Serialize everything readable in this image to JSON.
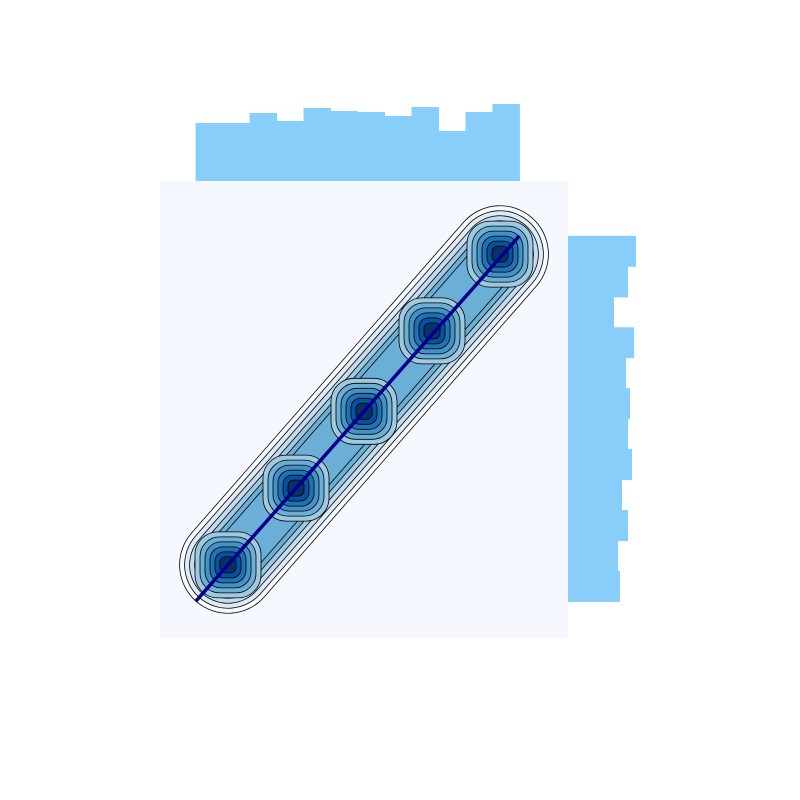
{
  "chart_data": {
    "type": "joint",
    "xlim": [
      -0.11,
      1.15
    ],
    "ylim": [
      -0.1,
      1.15
    ],
    "background": "#f5f9ff",
    "hist_color": "#87cefa",
    "line_color": "#00008b",
    "contour_colors": [
      "#deebf7",
      "#c6dbef",
      "#9ecae1",
      "#6baed6",
      "#4292c6",
      "#2171b5",
      "#08519c",
      "#08306b"
    ],
    "points": {
      "x": [
        0,
        1
      ],
      "y": [
        0,
        1
      ]
    },
    "modes": {
      "x": [
        0.1,
        0.31,
        0.52,
        0.73,
        0.94
      ],
      "y": [
        0.1,
        0.31,
        0.52,
        0.74,
        0.95
      ]
    },
    "x_hist": {
      "bins": [
        0,
        0.0833,
        0.1667,
        0.25,
        0.3333,
        0.4167,
        0.5,
        0.5833,
        0.6667,
        0.75,
        0.8333,
        0.9167,
        1
      ],
      "counts": [
        58,
        58,
        68,
        60,
        73,
        70,
        69,
        65,
        74,
        50,
        69,
        77
      ]
    },
    "y_hist": {
      "bins": [
        0,
        0.0833,
        0.1667,
        0.25,
        0.3333,
        0.4167,
        0.5,
        0.5833,
        0.6667,
        0.75,
        0.8333,
        0.9167,
        1
      ],
      "counts": [
        52,
        50,
        60,
        54,
        64,
        60,
        62,
        58,
        66,
        46,
        60,
        68
      ]
    }
  }
}
